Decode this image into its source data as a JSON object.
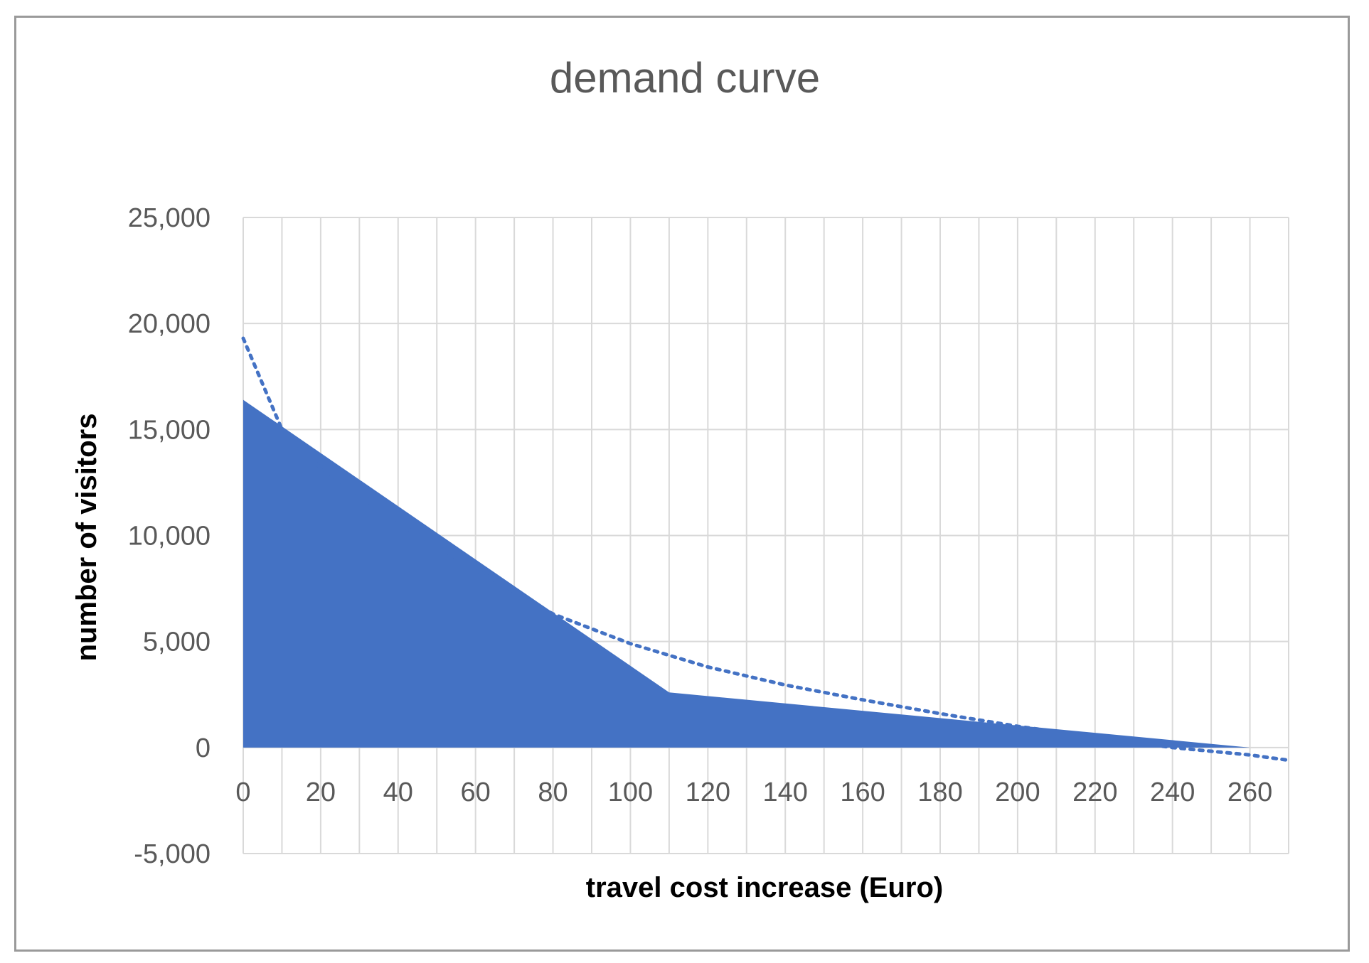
{
  "chart_data": {
    "type": "area",
    "title": "demand curve",
    "xlabel": "travel cost increase (Euro)",
    "ylabel": "number of visitors",
    "xlim": [
      0,
      270
    ],
    "ylim": [
      -5000,
      25000
    ],
    "x_ticks": [
      "0",
      "20",
      "40",
      "60",
      "80",
      "100",
      "120",
      "140",
      "160",
      "180",
      "200",
      "220",
      "240",
      "260"
    ],
    "y_ticks": [
      "25,000",
      "20,000",
      "15,000",
      "10,000",
      "5,000",
      "0",
      "-5,000"
    ],
    "x_tick_values": [
      0,
      20,
      40,
      60,
      80,
      100,
      120,
      140,
      160,
      180,
      200,
      220,
      240,
      260
    ],
    "y_tick_values": [
      25000,
      20000,
      15000,
      10000,
      5000,
      0,
      -5000
    ],
    "grid": true,
    "legend": "none",
    "series": [
      {
        "kind": "area",
        "color": "#4472c4",
        "points": [
          [
            0,
            16400
          ],
          [
            110,
            2600
          ],
          [
            260,
            0
          ]
        ]
      },
      {
        "kind": "trendline-dotted",
        "color": "#4472c4",
        "points": [
          [
            0,
            19300
          ],
          [
            10,
            15000
          ],
          [
            20,
            13200
          ],
          [
            40,
            10600
          ],
          [
            60,
            8400
          ],
          [
            80,
            6300
          ],
          [
            100,
            4900
          ],
          [
            120,
            3800
          ],
          [
            140,
            2950
          ],
          [
            160,
            2250
          ],
          [
            180,
            1600
          ],
          [
            200,
            1000
          ],
          [
            220,
            500
          ],
          [
            240,
            0
          ],
          [
            260,
            -350
          ],
          [
            270,
            -600
          ]
        ]
      }
    ]
  }
}
